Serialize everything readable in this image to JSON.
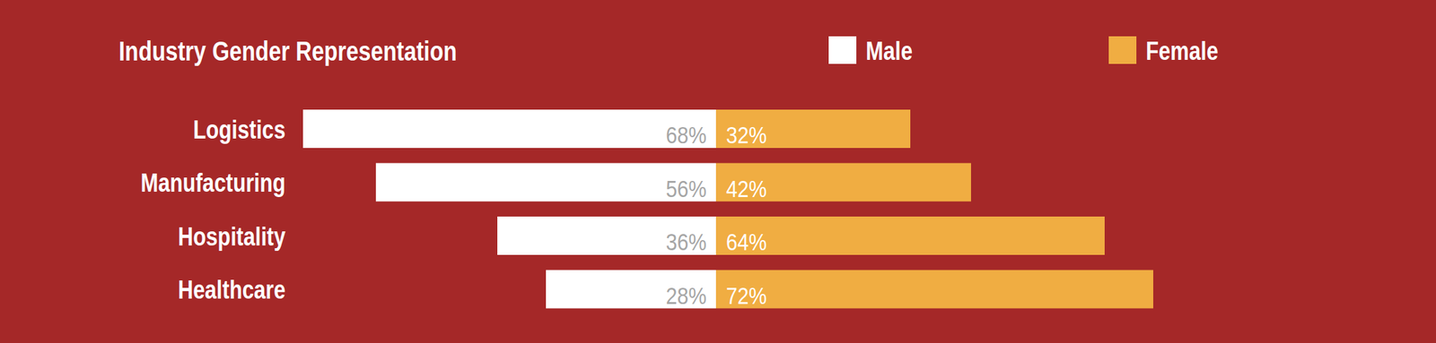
{
  "chart_data": {
    "type": "bar",
    "title": "Industry Gender Representation",
    "orientation": "horizontal",
    "stacked": true,
    "data_labels": true,
    "legend": "top",
    "tick_labels": "y",
    "categories": [
      "Logistics",
      "Manufacturing",
      "Hospitality",
      "Healthcare"
    ],
    "series": [
      {
        "name": "Male",
        "color": "#ffffff",
        "values": [
          68,
          56,
          36,
          28
        ],
        "value_labels": [
          "68%",
          "56%",
          "36%",
          "28%"
        ]
      },
      {
        "name": "Female",
        "color": "#f0ad42",
        "values": [
          32,
          42,
          64,
          72
        ],
        "value_labels": [
          "32%",
          "42%",
          "64%",
          "72%"
        ]
      }
    ]
  }
}
